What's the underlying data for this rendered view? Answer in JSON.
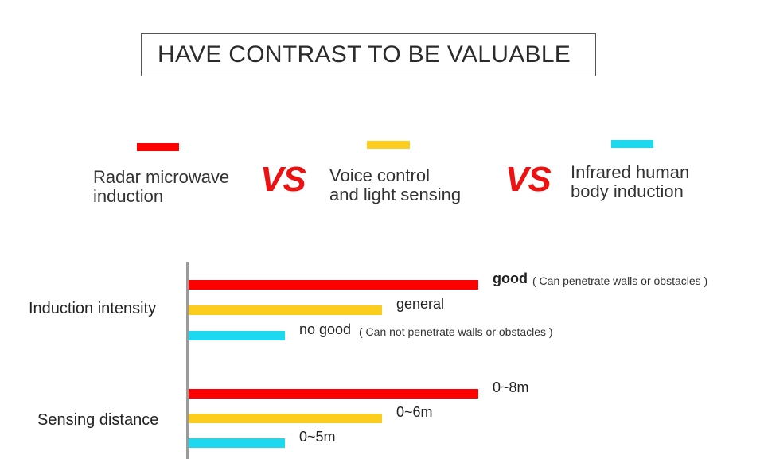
{
  "title": "HAVE CONTRAST TO BE VALUABLE",
  "vs_text": "VS",
  "colors": {
    "radar": "#ff0000",
    "voice": "#fccd1f",
    "infrared": "#1ed8f0",
    "vs": "#ee1111"
  },
  "legend": [
    {
      "label": "Radar microwave\ninduction",
      "color": "#ff0000"
    },
    {
      "label": "Voice control\nand light sensing",
      "color": "#fccd1f"
    },
    {
      "label": "Infrared human\nbody induction",
      "color": "#1ed8f0"
    }
  ],
  "chart_data": {
    "type": "bar",
    "orientation": "horizontal",
    "categories": [
      "Induction intensity",
      "Sensing distance"
    ],
    "series": [
      {
        "name": "Radar microwave induction",
        "color": "#ff0000",
        "values": [
          3,
          3
        ]
      },
      {
        "name": "Voice control and light sensing",
        "color": "#fccd1f",
        "values": [
          2,
          2
        ]
      },
      {
        "name": "Infrared human body induction",
        "color": "#1ed8f0",
        "values": [
          1,
          1
        ]
      }
    ],
    "data_labels": [
      [
        {
          "text": "good",
          "note": "( Can penetrate walls or obstacles )",
          "bold": true
        },
        {
          "text": "general",
          "note": "",
          "bold": false
        },
        {
          "text": "no good",
          "note": "( Can not penetrate walls or obstacles )",
          "bold": false
        }
      ],
      [
        {
          "text": "0~8m",
          "note": "",
          "bold": false
        },
        {
          "text": "0~6m",
          "note": "",
          "bold": false
        },
        {
          "text": "0~5m",
          "note": "",
          "bold": false
        }
      ]
    ],
    "xlim": [
      0,
      3
    ],
    "grid": false
  }
}
